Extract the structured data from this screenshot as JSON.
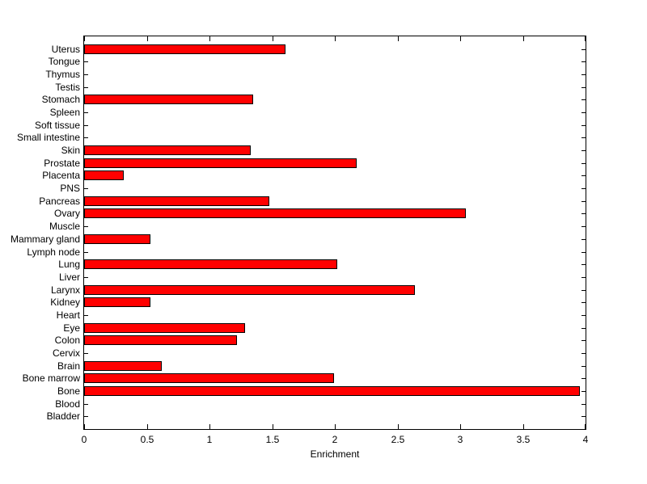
{
  "figure": {
    "background_color": "#ffffff",
    "axis_color": "#000000",
    "text_color": "#000000"
  },
  "chart_data": {
    "type": "bar",
    "orientation": "horizontal",
    "title": "",
    "xlabel": "Enrichment",
    "ylabel": "",
    "xlim": [
      0,
      4
    ],
    "x_ticks": [
      0,
      0.5,
      1,
      1.5,
      2,
      2.5,
      3,
      3.5,
      4
    ],
    "x_tick_labels": [
      "0",
      "0.5",
      "1",
      "1.5",
      "2",
      "2.5",
      "3",
      "3.5",
      "4"
    ],
    "grid": false,
    "legend": null,
    "bar_color": "#ff0000",
    "bar_edge_color": "#000000",
    "categories": [
      "Uterus",
      "Tongue",
      "Thymus",
      "Testis",
      "Stomach",
      "Spleen",
      "Soft tissue",
      "Small intestine",
      "Skin",
      "Prostate",
      "Placenta",
      "PNS",
      "Pancreas",
      "Ovary",
      "Muscle",
      "Mammary gland",
      "Lymph node",
      "Lung",
      "Liver",
      "Larynx",
      "Kidney",
      "Heart",
      "Eye",
      "Colon",
      "Cervix",
      "Brain",
      "Bone marrow",
      "Bone",
      "Blood",
      "Bladder"
    ],
    "values": [
      1.6,
      0,
      0,
      0,
      1.34,
      0,
      0,
      0,
      1.32,
      2.17,
      0.31,
      0,
      1.47,
      3.04,
      0,
      0.52,
      0,
      2.01,
      0,
      2.63,
      0.52,
      0,
      1.28,
      1.21,
      0,
      0.61,
      1.99,
      3.95,
      0,
      0
    ]
  }
}
